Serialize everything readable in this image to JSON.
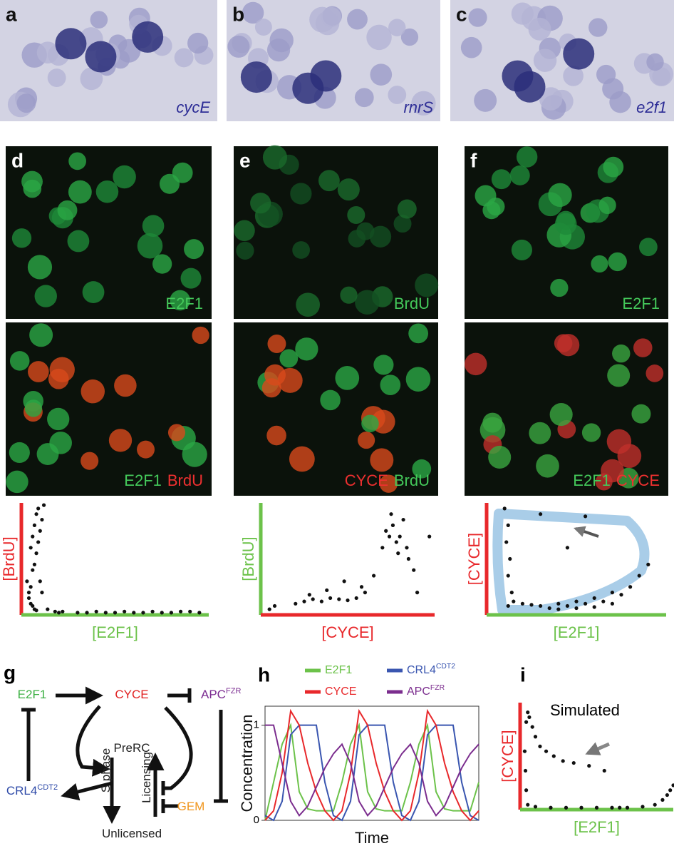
{
  "images": [
    {
      "label": "a",
      "caption": "cycE"
    },
    {
      "label": "b",
      "caption": "rnrS"
    },
    {
      "label": "c",
      "caption": "e2f1"
    },
    {
      "label": "d",
      "stains": [
        {
          "text": "E2F1",
          "color": "#44c85a"
        }
      ]
    },
    {
      "label": "e",
      "stains": [
        {
          "text": "BrdU",
          "color": "#44c85a"
        }
      ]
    },
    {
      "label": "f",
      "stains": [
        {
          "text": "E2F1",
          "color": "#44c85a"
        }
      ]
    },
    {
      "stains": [
        {
          "text": "E2F1",
          "color": "#44c85a"
        },
        {
          "text": "BrdU",
          "color": "#ee3030"
        }
      ]
    },
    {
      "stains": [
        {
          "text": "CYCE",
          "color": "#ee3030"
        },
        {
          "text": "BrdU",
          "color": "#44c85a"
        }
      ]
    },
    {
      "stains": [
        {
          "text": "E2F1",
          "color": "#44c85a"
        },
        {
          "text": "CYCE",
          "color": "#ee3030"
        }
      ]
    }
  ],
  "diagram": {
    "label": "g",
    "nodes": [
      {
        "text": "E2F1",
        "color": "#3cb043"
      },
      {
        "text": "CYCE",
        "color": "#e02020"
      },
      {
        "text": "APC",
        "sup": "FZR",
        "color": "#7a2a90"
      },
      {
        "text": "CRL4",
        "sup": "CDT2",
        "color": "#2e4aa8"
      },
      {
        "text": "PreRC",
        "color": "#222222"
      },
      {
        "text": "S phase",
        "color": "#222222"
      },
      {
        "text": "Licensing",
        "color": "#222222"
      },
      {
        "text": "GEM",
        "color": "#f0961e"
      },
      {
        "text": "Unlicensed",
        "color": "#222222"
      }
    ]
  },
  "chart_data": [
    {
      "type": "scatter",
      "x_label": "[E2F1]",
      "y_label": "[BrdU]",
      "x_color": "#6cc24a",
      "y_color": "#e8282b",
      "xlim": [
        0,
        100
      ],
      "ylim": [
        0,
        100
      ],
      "x": [
        5,
        6,
        7,
        8,
        9,
        10,
        11,
        12,
        6,
        7,
        8,
        9,
        10,
        11,
        14,
        18,
        22,
        3,
        4,
        5,
        6,
        7,
        8,
        4,
        5,
        20,
        30,
        40,
        50,
        60,
        70,
        80,
        90,
        95,
        35,
        45,
        55,
        65,
        75,
        85
      ],
      "y": [
        60,
        70,
        80,
        90,
        95,
        75,
        85,
        98,
        40,
        45,
        55,
        65,
        30,
        20,
        5,
        3,
        3,
        30,
        15,
        10,
        8,
        5,
        4,
        20,
        25,
        2,
        2,
        3,
        2,
        2,
        3,
        2,
        3,
        2,
        2,
        2,
        3,
        2,
        2,
        3
      ]
    },
    {
      "type": "scatter",
      "x_label": "[CYCE]",
      "y_label": "[BrdU]",
      "x_color": "#e8282b",
      "y_color": "#6cc24a",
      "xlim": [
        0,
        100
      ],
      "ylim": [
        0,
        100
      ],
      "x": [
        5,
        8,
        20,
        25,
        30,
        35,
        40,
        45,
        50,
        55,
        60,
        65,
        70,
        72,
        74,
        76,
        78,
        80,
        82,
        84,
        75,
        79,
        85,
        88,
        90,
        97,
        28,
        38,
        48,
        58
      ],
      "y": [
        5,
        8,
        10,
        12,
        14,
        12,
        15,
        14,
        13,
        15,
        20,
        35,
        60,
        75,
        70,
        80,
        65,
        70,
        85,
        60,
        90,
        55,
        50,
        40,
        20,
        70,
        18,
        22,
        30,
        25
      ]
    },
    {
      "type": "scatter",
      "x_label": "[E2F1]",
      "y_label": "[CYCE]",
      "x_color": "#6cc24a",
      "y_color": "#e8282b",
      "xlim": [
        0,
        100
      ],
      "ylim": [
        0,
        100
      ],
      "x": [
        10,
        12,
        11,
        13,
        12,
        14,
        20,
        30,
        40,
        50,
        60,
        70,
        80,
        85,
        90,
        75,
        65,
        55,
        45,
        35,
        25,
        15,
        40,
        50,
        60,
        70,
        45,
        55,
        30,
        12
      ],
      "y": [
        95,
        80,
        65,
        50,
        35,
        20,
        10,
        8,
        10,
        12,
        15,
        20,
        25,
        35,
        45,
        18,
        12,
        10,
        8,
        6,
        9,
        12,
        5,
        6,
        7,
        10,
        60,
        88,
        90,
        8
      ]
    },
    {
      "type": "line",
      "label": "h",
      "x_label": "Time",
      "y_label": "Concentration",
      "xlim": [
        0,
        100
      ],
      "ylim": [
        0,
        1.2
      ],
      "yticks": [
        0,
        1
      ],
      "x": [
        0,
        4,
        8,
        12,
        16,
        20,
        24,
        28,
        32,
        36,
        40,
        44,
        48,
        52,
        56,
        60,
        64,
        68,
        72,
        76,
        80,
        84,
        88,
        92,
        96,
        100
      ],
      "series": [
        {
          "name": "E2F1",
          "color": "#6cc24a",
          "values": [
            0,
            0.4,
            0.8,
            1,
            0.3,
            0.12,
            0.1,
            0.1,
            0.1,
            0.4,
            0.8,
            1,
            0.3,
            0.12,
            0.1,
            0.1,
            0.1,
            0.4,
            0.8,
            1,
            0.3,
            0.12,
            0.1,
            0.1,
            0.1,
            0.4
          ]
        },
        {
          "name": "CRL4",
          "sup": "CDT2",
          "color": "#3a56b0",
          "values": [
            0.05,
            0,
            0.2,
            0.9,
            1,
            1,
            1,
            0.4,
            0.05,
            0,
            0.2,
            0.9,
            1,
            1,
            1,
            0.4,
            0.05,
            0,
            0.2,
            0.9,
            1,
            1,
            1,
            0.4,
            0.05,
            0
          ]
        },
        {
          "name": "CYCE",
          "color": "#e8282b",
          "values": [
            0,
            0.1,
            0.5,
            1.15,
            1,
            0.6,
            0.3,
            0.1,
            0,
            0.1,
            0.5,
            1.15,
            1,
            0.6,
            0.3,
            0.1,
            0,
            0.1,
            0.5,
            1.15,
            1,
            0.6,
            0.3,
            0.1,
            0,
            0.1
          ]
        },
        {
          "name": "APC",
          "sup": "FZR",
          "color": "#7b2d8e",
          "values": [
            1,
            1,
            0.6,
            0.2,
            0.05,
            0.15,
            0.35,
            0.55,
            0.7,
            0.8,
            0.6,
            0.2,
            0.05,
            0.15,
            0.35,
            0.55,
            0.7,
            0.8,
            0.6,
            0.2,
            0.05,
            0.15,
            0.35,
            0.55,
            0.7,
            0.8
          ]
        }
      ]
    },
    {
      "type": "scatter",
      "label": "i",
      "annotation": "Simulated",
      "x_label": "[E2F1]",
      "y_label": "[CYCE]",
      "x_color": "#6cc24a",
      "y_color": "#e8282b",
      "xlim": [
        0,
        100
      ],
      "ylim": [
        0,
        110
      ],
      "x": [
        3,
        4,
        5,
        6,
        8,
        10,
        13,
        17,
        22,
        28,
        35,
        45,
        55,
        4,
        3.5,
        5,
        10,
        20,
        30,
        40,
        50,
        60,
        70,
        80,
        88,
        93,
        96,
        98,
        100,
        65
      ],
      "y": [
        60,
        90,
        100,
        95,
        85,
        75,
        65,
        60,
        55,
        50,
        48,
        45,
        40,
        20,
        40,
        5,
        3,
        2,
        2,
        2,
        2,
        2,
        2,
        3,
        5,
        10,
        15,
        20,
        25,
        2
      ]
    }
  ]
}
